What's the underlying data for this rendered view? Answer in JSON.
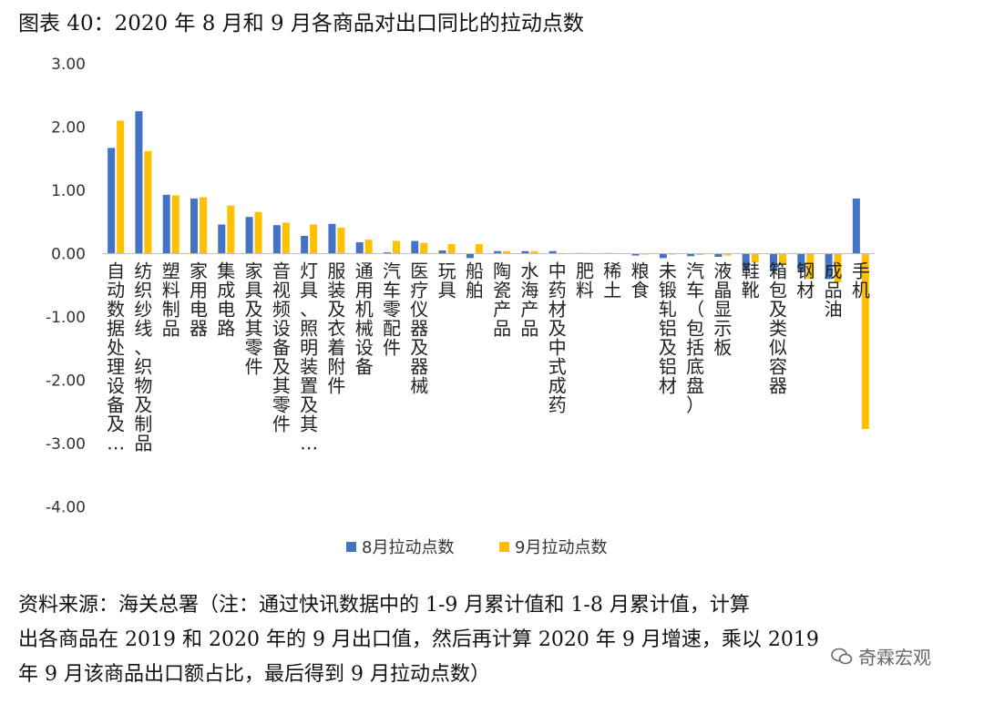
{
  "figure": {
    "title": "图表 40：2020 年 8 月和 9 月各商品对出口同比的拉动点数",
    "source_lines": [
      "资料来源：海关总署（注：通过快讯数据中的 1-9 月累计值和 1-8 月累计值，计算",
      "出各商品在 2019 和 2020 年的 9 月出口值，然后再计算 2020 年 9 月增速，乘以 2019",
      "年 9 月该商品出口额占比，最后得到 9 月拉动点数）"
    ],
    "watermark": "奇霖宏观"
  },
  "chart_data": {
    "type": "bar",
    "title": "",
    "xlabel": "",
    "ylabel": "",
    "ylim": [
      -4,
      3
    ],
    "yticks": [
      "3.00",
      "2.00",
      "1.00",
      "0.00",
      "-1.00",
      "-2.00",
      "-3.00",
      "-4.00"
    ],
    "ytick_values": [
      3,
      2,
      1,
      0,
      -1,
      -2,
      -3,
      -4
    ],
    "categories": [
      "自动数据处理设备及…",
      "纺织纱线、织物及制品",
      "塑料制品",
      "家用电器",
      "集成电路",
      "家具及其零件",
      "音视频设备及其零件",
      "灯具、照明装置及其…",
      "服装及衣着附件",
      "通用机械设备",
      "汽车零配件",
      "医疗仪器及器械",
      "玩具",
      "船舶",
      "陶瓷产品",
      "水海产品",
      "中药材及中式成药",
      "肥料",
      "稀土",
      "粮食",
      "未锻轧铝及铝材",
      "汽车（包括底盘）",
      "液晶显示板",
      "鞋靴",
      "箱包及类似容器",
      "钢材",
      "成品油",
      "手机"
    ],
    "series": [
      {
        "name": "8月拉动点数",
        "color": "#4472C4",
        "values": [
          1.67,
          2.25,
          0.93,
          0.87,
          0.46,
          0.58,
          0.45,
          0.28,
          0.47,
          0.18,
          0.02,
          0.2,
          0.05,
          -0.07,
          0.04,
          0.04,
          0.04,
          0.01,
          0.01,
          -0.03,
          -0.07,
          -0.04,
          -0.05,
          -0.27,
          -0.28,
          -0.28,
          -0.4,
          0.87
        ]
      },
      {
        "name": "9月拉动点数",
        "color": "#FFC000",
        "values": [
          2.1,
          1.62,
          0.92,
          0.89,
          0.76,
          0.66,
          0.49,
          0.46,
          0.41,
          0.22,
          0.2,
          0.17,
          0.15,
          0.15,
          0.04,
          0.04,
          0.01,
          0.01,
          0.01,
          -0.01,
          -0.01,
          -0.02,
          -0.03,
          -0.14,
          -0.17,
          -0.4,
          -0.45,
          -2.77
        ]
      }
    ],
    "legend": "bottom-center"
  }
}
